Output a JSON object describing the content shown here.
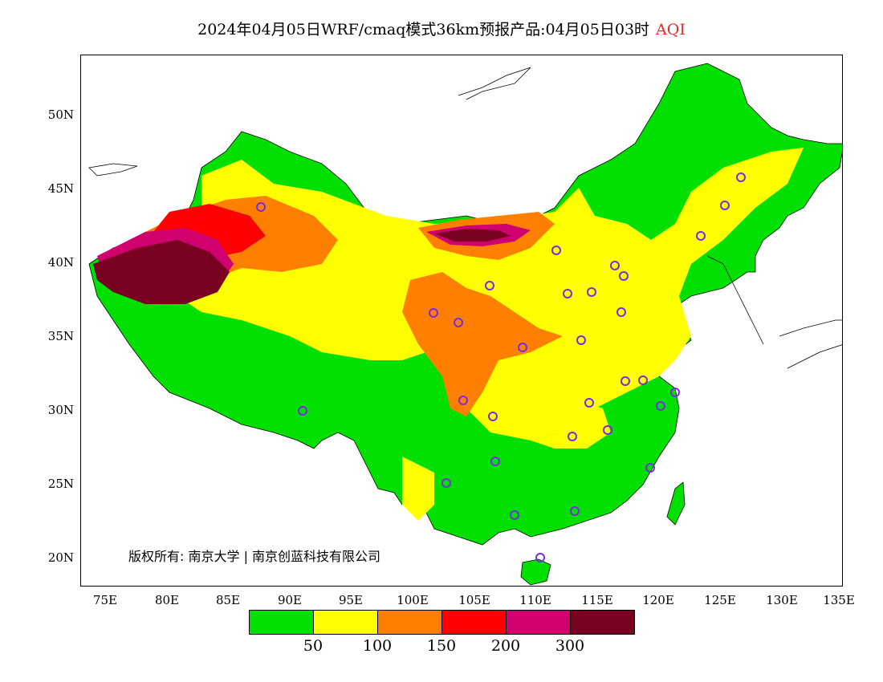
{
  "title": {
    "text": "2024年04月05日WRF/cmaq模式36km预报产品:04月05日03时",
    "variable": "AQI",
    "variable_color": "#e0302c"
  },
  "map": {
    "lat_labels": [
      "50N",
      "45N",
      "40N",
      "35N",
      "30N",
      "25N",
      "20N"
    ],
    "lon_labels": [
      "75E",
      "80E",
      "85E",
      "90E",
      "95E",
      "100E",
      "105E",
      "110E",
      "115E",
      "120E",
      "125E",
      "130E",
      "135E"
    ],
    "lon_range": [
      73,
      135
    ],
    "lat_range": [
      18,
      54
    ],
    "station_marker_color": "#7a2ae0",
    "copyright": "版权所有: 南京大学 | 南京创蓝科技有限公司"
  },
  "legend": {
    "colors": [
      "#00e000",
      "#ffff00",
      "#ff8000",
      "#ff0000",
      "#d0006e",
      "#7a0022"
    ],
    "labels": [
      "50",
      "100",
      "150",
      "200",
      "300"
    ]
  }
}
